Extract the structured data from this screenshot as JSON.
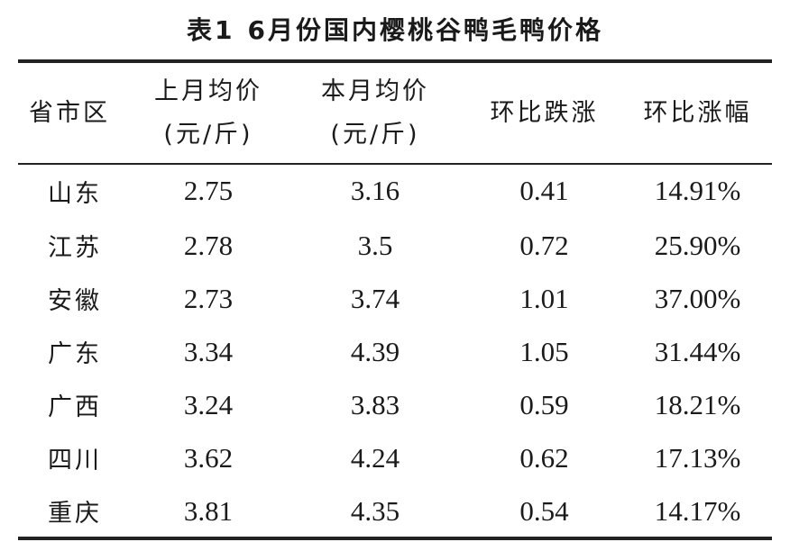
{
  "caption": {
    "number": "表1",
    "title": "6月份国内樱桃谷鸭毛鸭价格"
  },
  "table": {
    "headers": [
      {
        "line1": "省市区",
        "line2": ""
      },
      {
        "line1": "上月均价",
        "line2": "(元/斤)"
      },
      {
        "line1": "本月均价",
        "line2": "(元/斤)"
      },
      {
        "line1": "环比跌涨",
        "line2": ""
      },
      {
        "line1": "环比涨幅",
        "line2": ""
      }
    ],
    "rows": [
      {
        "region": "山东",
        "last_month": "2.75",
        "this_month": "3.16",
        "change": "0.41",
        "change_pct": "14.91%"
      },
      {
        "region": "江苏",
        "last_month": "2.78",
        "this_month": "3.5",
        "change": "0.72",
        "change_pct": "25.90%"
      },
      {
        "region": "安徽",
        "last_month": "2.73",
        "this_month": "3.74",
        "change": "1.01",
        "change_pct": "37.00%"
      },
      {
        "region": "广东",
        "last_month": "3.34",
        "this_month": "4.39",
        "change": "1.05",
        "change_pct": "31.44%"
      },
      {
        "region": "广西",
        "last_month": "3.24",
        "this_month": "3.83",
        "change": "0.59",
        "change_pct": "18.21%"
      },
      {
        "region": "四川",
        "last_month": "3.62",
        "this_month": "4.24",
        "change": "0.62",
        "change_pct": "17.13%"
      },
      {
        "region": "重庆",
        "last_month": "3.81",
        "this_month": "4.35",
        "change": "0.54",
        "change_pct": "14.17%"
      }
    ]
  }
}
